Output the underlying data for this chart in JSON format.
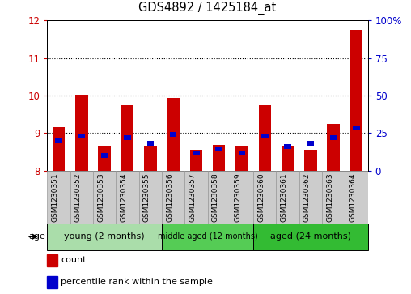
{
  "title": "GDS4892 / 1425184_at",
  "samples": [
    "GSM1230351",
    "GSM1230352",
    "GSM1230353",
    "GSM1230354",
    "GSM1230355",
    "GSM1230356",
    "GSM1230357",
    "GSM1230358",
    "GSM1230359",
    "GSM1230360",
    "GSM1230361",
    "GSM1230362",
    "GSM1230363",
    "GSM1230364"
  ],
  "count_values": [
    9.15,
    10.02,
    8.65,
    9.75,
    8.65,
    9.93,
    8.55,
    8.68,
    8.65,
    9.75,
    8.65,
    8.55,
    9.25,
    11.75
  ],
  "percentile_values": [
    20,
    23,
    10,
    22,
    18,
    24,
    12,
    14,
    12,
    23,
    16,
    18,
    22,
    28
  ],
  "ylim_left": [
    8,
    12
  ],
  "ylim_right": [
    0,
    100
  ],
  "yticks_left": [
    8,
    9,
    10,
    11,
    12
  ],
  "yticks_right": [
    0,
    25,
    50,
    75,
    100
  ],
  "ytick_labels_right": [
    "0",
    "25",
    "50",
    "75",
    "100%"
  ],
  "bar_color": "#cc0000",
  "percentile_color": "#0000cc",
  "bar_width": 0.55,
  "groups": [
    {
      "label": "young (2 months)",
      "start": 0,
      "end": 5,
      "color": "#aaddaa",
      "fontsize": 8
    },
    {
      "label": "middle aged (12 months)",
      "start": 5,
      "end": 9,
      "color": "#55cc55",
      "fontsize": 7
    },
    {
      "label": "aged (24 months)",
      "start": 9,
      "end": 14,
      "color": "#33bb33",
      "fontsize": 8
    }
  ],
  "axis_label": "age",
  "legend_items": [
    {
      "label": "count",
      "color": "#cc0000"
    },
    {
      "label": "percentile rank within the sample",
      "color": "#0000cc"
    }
  ],
  "grid_style": "dotted",
  "grid_color": "black",
  "background_color": "#ffffff",
  "tick_label_color_left": "#cc0000",
  "tick_label_color_right": "#0000cc",
  "base_value": 8.0,
  "xtick_bg_color": "#cccccc",
  "xtick_edge_color": "#999999"
}
